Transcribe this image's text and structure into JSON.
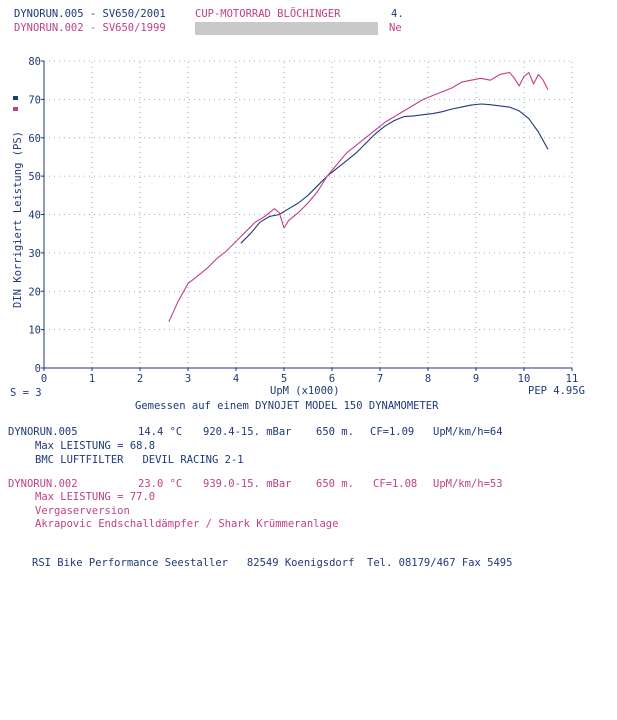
{
  "header": {
    "line1_id": "DYNORUN.005 - SV650/2001",
    "line1_owner": "CUP-MOTORRAD BLÖCHINGER",
    "line1_page": "4.",
    "line2_id": "DYNORUN.002 - SV650/1999",
    "line2_tail": "Ne"
  },
  "chart_data": {
    "type": "line",
    "title": "",
    "xlabel": "UpM (x1000)",
    "ylabel": "DIN Korrigiert Leistung (PS)",
    "xlim": [
      0,
      11
    ],
    "ylim": [
      0,
      80
    ],
    "x_ticks": [
      "0",
      "1",
      "2",
      "3",
      "4",
      "5",
      "6",
      "7",
      "8",
      "9",
      "10",
      "11"
    ],
    "y_ticks": [
      "0",
      "10",
      "20",
      "30",
      "40",
      "50",
      "60",
      "70",
      "80"
    ],
    "grid": true,
    "smoothing_label": "S = 3",
    "pep_label": "PEP 4.95G",
    "footnote": "Gemessen auf einem DYNOJET MODEL 150 DYNAMOMETER",
    "colors": {
      "run005": "#1f3a78",
      "run002": "#c0408a",
      "axis": "#1f3a78",
      "grid": "#7f91bf"
    },
    "series": [
      {
        "name": "DYNORUN.005",
        "x": [
          4.1,
          4.3,
          4.5,
          4.7,
          4.9,
          5.1,
          5.3,
          5.5,
          5.7,
          5.9,
          6.1,
          6.3,
          6.5,
          6.7,
          6.9,
          7.1,
          7.3,
          7.5,
          7.7,
          7.9,
          8.1,
          8.3,
          8.5,
          8.7,
          8.9,
          9.1,
          9.3,
          9.5,
          9.7,
          9.9,
          10.1,
          10.3,
          10.5
        ],
        "y": [
          32.5,
          35.0,
          38.0,
          39.5,
          40.0,
          41.5,
          43.0,
          45.0,
          47.5,
          50.0,
          52.0,
          54.0,
          56.0,
          58.5,
          61.0,
          63.0,
          64.5,
          65.5,
          65.7,
          66.0,
          66.3,
          66.8,
          67.5,
          68.0,
          68.5,
          68.8,
          68.6,
          68.3,
          68.0,
          67.0,
          65.0,
          61.5,
          57.0
        ]
      },
      {
        "name": "DYNORUN.002",
        "x": [
          2.6,
          2.8,
          3.0,
          3.2,
          3.4,
          3.6,
          3.8,
          4.0,
          4.2,
          4.4,
          4.6,
          4.8,
          4.9,
          5.0,
          5.1,
          5.3,
          5.5,
          5.7,
          5.9,
          6.1,
          6.3,
          6.5,
          6.7,
          6.9,
          7.1,
          7.3,
          7.5,
          7.7,
          7.9,
          8.1,
          8.3,
          8.5,
          8.7,
          8.9,
          9.1,
          9.3,
          9.5,
          9.7,
          9.8,
          9.9,
          10.0,
          10.1,
          10.2,
          10.3,
          10.4,
          10.5
        ],
        "y": [
          12.0,
          17.5,
          22.0,
          24.0,
          26.0,
          28.5,
          30.5,
          33.0,
          35.5,
          38.0,
          39.5,
          41.5,
          40.5,
          36.5,
          38.5,
          40.5,
          43.0,
          46.0,
          50.0,
          53.0,
          56.0,
          58.0,
          60.0,
          62.0,
          64.0,
          65.5,
          67.0,
          68.5,
          70.0,
          71.0,
          72.0,
          73.0,
          74.5,
          75.0,
          75.5,
          75.0,
          76.5,
          77.0,
          75.5,
          73.5,
          76.0,
          77.0,
          74.0,
          76.5,
          75.0,
          72.5
        ]
      }
    ]
  },
  "runs": [
    {
      "id": "DYNORUN.005",
      "temp": "14.4 °C",
      "pressure": "920.4-15. mBar",
      "altitude": "650 m.",
      "cf": "CF=1.09",
      "speed_ratio": "UpM/km/h=64",
      "max": "Max LEISTUNG = 68.8",
      "notes": [
        "BMC LUFTFILTER   DEVIL RACING 2-1"
      ]
    },
    {
      "id": "DYNORUN.002",
      "temp": "23.0 °C",
      "pressure": "939.0-15. mBar",
      "altitude": "650 m.",
      "cf": "CF=1.08",
      "speed_ratio": "UpM/km/h=53",
      "max": "Max LEISTUNG = 77.0",
      "notes": [
        "Vergaserversion",
        "Akrapovic Endschalldämpfer / Shark Krümmeranlage"
      ]
    }
  ],
  "footer": {
    "address": "RSI Bike Performance Seestaller   82549 Koenigsdorf  Tel. 08179/467 Fax 5495"
  }
}
